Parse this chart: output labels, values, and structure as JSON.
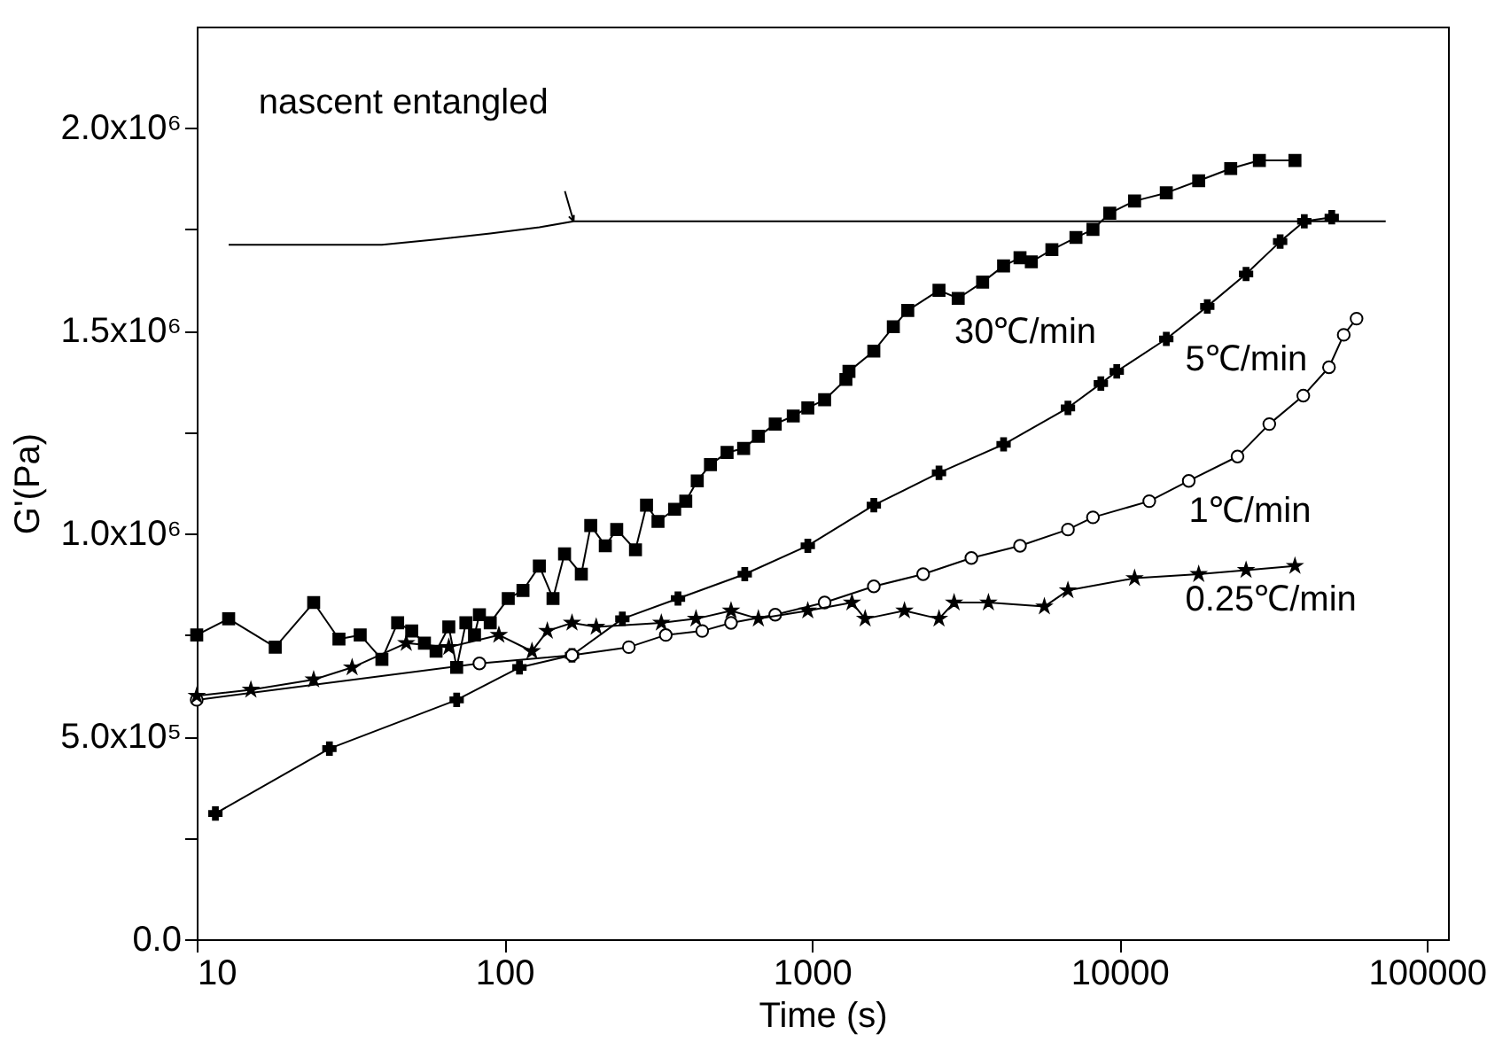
{
  "chart_data": {
    "type": "line",
    "xlabel": "Time (s)",
    "ylabel": "G'(Pa)",
    "log": "x",
    "grid": false,
    "xlim": [
      10,
      117000
    ],
    "xticks": [
      10,
      100,
      1000,
      10000,
      100000
    ],
    "ylim": [
      0,
      2250000
    ],
    "yticks": [
      {
        "value": 0,
        "label": "0.0"
      },
      {
        "value": 250000,
        "label": null
      },
      {
        "value": 500000,
        "label": "5.0x10⁵"
      },
      {
        "value": 750000,
        "label": null
      },
      {
        "value": 1000000,
        "label": "1.0x10⁶"
      },
      {
        "value": 1250000,
        "label": null
      },
      {
        "value": 1500000,
        "label": "1.5x10⁶"
      },
      {
        "value": 1750000,
        "label": null
      },
      {
        "value": 2000000,
        "label": "2.0x10⁶"
      }
    ],
    "series": [
      {
        "marker": "none",
        "color": "#000000",
        "x": [
          12.7,
          40,
          60,
          90,
          130,
          168,
          73400
        ],
        "values": [
          1712000,
          1712000,
          1725000,
          1740000,
          1755000,
          1770000,
          1770000
        ]
      },
      {
        "name": "30℃/min",
        "marker": "square",
        "color": "#000000",
        "x": [
          10,
          12.7,
          18,
          24,
          29,
          34,
          40,
          45,
          50,
          55,
          60,
          66,
          70,
          75,
          80,
          83,
          90,
          103,
          115,
          130,
          144,
          157,
          178,
          191,
          213,
          232,
          267,
          290,
          316,
          358,
          389,
          424,
          468,
          530,
          600,
          670,
          760,
          870,
          970,
          1100,
          1290,
          1320,
          1590,
          1840,
          2050,
          2590,
          2990,
          3590,
          4200,
          4750,
          5170,
          6030,
          7220,
          8200,
          9300,
          11200,
          14200,
          18100,
          23000,
          28500,
          37200
        ],
        "values": [
          750000,
          790000,
          720000,
          830000,
          740000,
          750000,
          690000,
          780000,
          760000,
          730000,
          710000,
          770000,
          670000,
          780000,
          750000,
          800000,
          780000,
          840000,
          860000,
          920000,
          840000,
          950000,
          900000,
          1020000,
          970000,
          1010000,
          960000,
          1070000,
          1030000,
          1060000,
          1080000,
          1130000,
          1170000,
          1200000,
          1210000,
          1240000,
          1270000,
          1290000,
          1310000,
          1330000,
          1380000,
          1400000,
          1450000,
          1510000,
          1550000,
          1600000,
          1580000,
          1620000,
          1660000,
          1680000,
          1670000,
          1700000,
          1730000,
          1750000,
          1790000,
          1820000,
          1840000,
          1870000,
          1900000,
          1920000,
          1920000
        ]
      },
      {
        "name": "5℃/min",
        "marker": "cross",
        "color": "#000000",
        "x": [
          11.5,
          27,
          70,
          112,
          166,
          242,
          367,
          605,
          970,
          1590,
          2590,
          4200,
          6800,
          8700,
          9800,
          14200,
          19300,
          25800,
          33300,
          39900,
          49000
        ],
        "values": [
          310000,
          470000,
          590000,
          670000,
          700000,
          790000,
          840000,
          900000,
          970000,
          1070000,
          1150000,
          1220000,
          1310000,
          1370000,
          1400000,
          1480000,
          1560000,
          1640000,
          1720000,
          1770000,
          1780000
        ]
      },
      {
        "name": "1℃/min",
        "marker": "circle",
        "color": "#000000",
        "x": [
          10,
          83,
          166,
          254,
          335,
          440,
          546,
          760,
          1100,
          1590,
          2300,
          3300,
          4750,
          6800,
          8200,
          12500,
          16800,
          24200,
          30700,
          39600,
          48000,
          53600,
          59000
        ],
        "values": [
          590000,
          680000,
          700000,
          720000,
          750000,
          760000,
          780000,
          800000,
          830000,
          870000,
          900000,
          940000,
          970000,
          1010000,
          1040000,
          1080000,
          1130000,
          1190000,
          1270000,
          1340000,
          1410000,
          1490000,
          1530000
        ]
      },
      {
        "name": "0.25℃/min",
        "marker": "star",
        "color": "#000000",
        "x": [
          10,
          15,
          24,
          32,
          48,
          66,
          96,
          123,
          138,
          166,
          199,
          324,
          420,
          546,
          670,
          970,
          1350,
          1490,
          2000,
          2590,
          2900,
          3750,
          5700,
          6800,
          11200,
          18100,
          25800,
          37200
        ],
        "values": [
          600000,
          615000,
          640000,
          670000,
          730000,
          720000,
          750000,
          710000,
          760000,
          780000,
          770000,
          780000,
          790000,
          810000,
          790000,
          810000,
          830000,
          790000,
          810000,
          790000,
          830000,
          830000,
          820000,
          860000,
          890000,
          900000,
          910000,
          920000
        ]
      }
    ],
    "annotations": [
      {
        "text": "nascent entangled",
        "x": 168,
        "y": 1770000
      }
    ]
  }
}
